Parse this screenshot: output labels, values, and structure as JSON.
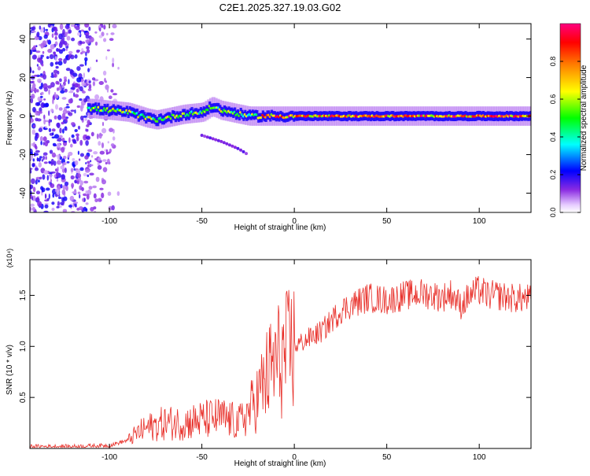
{
  "title": "C2E1.2025.327.19.03.G02",
  "chart_data": [
    {
      "type": "heatmap",
      "xlabel": "Height of straight line (km)",
      "ylabel": "Frequency (Hz)",
      "xlim": [
        -143,
        128
      ],
      "ylim": [
        -50,
        48
      ],
      "xticks": [
        -100,
        -50,
        0,
        50,
        100
      ],
      "yticks": [
        -40,
        -20,
        0,
        20,
        40
      ],
      "colorbar": {
        "label": "Normalized spectral amplitude",
        "range": [
          0,
          1
        ],
        "ticks": [
          "0.0",
          "0.2",
          "0.4",
          "0.6",
          "0.8"
        ],
        "tick_values": [
          0.0,
          0.2,
          0.4,
          0.6,
          0.8
        ]
      },
      "ridge": {
        "x": [
          -110,
          -100,
          -90,
          -80,
          -75,
          -70,
          -60,
          -50,
          -45,
          -40,
          -35,
          -30,
          -25,
          -20,
          -10,
          0,
          10,
          20,
          30,
          40,
          50,
          60,
          70,
          80,
          90,
          100,
          110,
          120,
          128
        ],
        "freq": [
          4,
          3,
          2,
          -1,
          -2,
          -1,
          1,
          2,
          5,
          3,
          2,
          1,
          0,
          0,
          0,
          0,
          0,
          0,
          0,
          0,
          0,
          0,
          0,
          0,
          0,
          0,
          0,
          0,
          0
        ]
      },
      "branch": {
        "x": [
          -50,
          -40,
          -30,
          -25
        ],
        "freq": [
          -10,
          -13,
          -17,
          -20
        ]
      }
    },
    {
      "type": "line",
      "xlabel": "Height of straight line (km)",
      "ylabel": "SNR (10 * v/v)",
      "y_multiplier": "(x10⁴)",
      "xlim": [
        -143,
        128
      ],
      "ylim": [
        0,
        1.85
      ],
      "xticks": [
        -100,
        -50,
        0,
        50,
        100
      ],
      "yticks": [
        0.5,
        1.0,
        1.5
      ],
      "ytick_labels": [
        "0.5",
        "1.0",
        "1.5"
      ],
      "color": "#e8302a",
      "series": [
        {
          "x": [
            -143,
            -120,
            -100,
            -90,
            -85,
            -80,
            -70,
            -60,
            -50,
            -40,
            -35,
            -30,
            -25,
            -20,
            -15,
            -10,
            -5,
            0,
            5,
            10,
            15,
            20,
            25,
            30,
            40,
            50,
            60,
            70,
            80,
            85,
            90,
            95,
            100,
            105,
            110,
            115,
            120,
            128
          ],
          "y": [
            0.02,
            0.02,
            0.03,
            0.08,
            0.15,
            0.2,
            0.25,
            0.25,
            0.28,
            0.3,
            0.28,
            0.25,
            0.35,
            0.5,
            0.7,
            0.85,
            0.9,
            1.0,
            1.05,
            1.1,
            1.15,
            1.25,
            1.35,
            1.4,
            1.48,
            1.45,
            1.5,
            1.52,
            1.48,
            1.52,
            1.4,
            1.5,
            1.55,
            1.5,
            1.5,
            1.48,
            1.47,
            1.47
          ]
        }
      ]
    }
  ]
}
